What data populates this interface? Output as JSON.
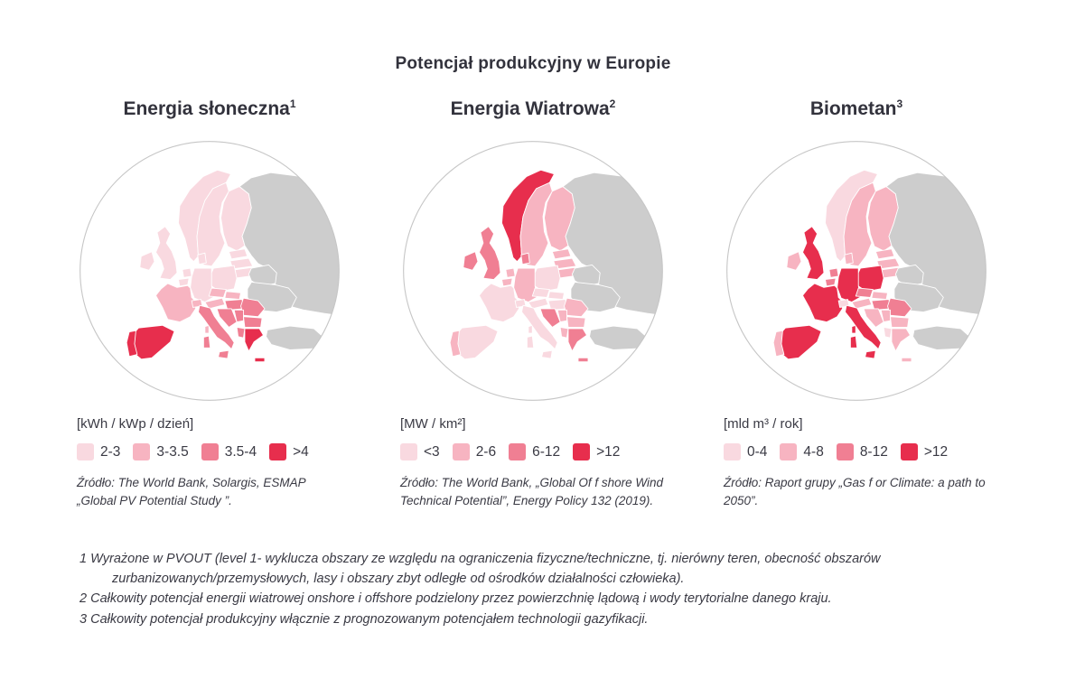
{
  "page_title": "Potencjał produkcyjny w Europie",
  "colors": {
    "levels": [
      "#F9D9E0",
      "#F7B4C1",
      "#F07F93",
      "#E72E4D"
    ],
    "no_data": "#CDCDCD",
    "sea": "#FFFFFF",
    "circle_border": "#C6C6C6",
    "country_border": "#FFFFFF",
    "text": "#3A3A44"
  },
  "chart_data": [
    {
      "type": "choropleth",
      "title": "Energia słoneczna",
      "title_sup": "1",
      "unit": "[kWh / kWp / dzień]",
      "legend": [
        "2-3",
        "3-3.5",
        "3.5-4",
        ">4"
      ],
      "legend_colors": [
        "#F9D9E0",
        "#F7B4C1",
        "#F07F93",
        "#E72E4D"
      ],
      "source": "Źródło: The World Bank, Solargis, ESMAP „Global PV Potential Study ”.",
      "country_levels": {
        "norway": 1,
        "sweden": 1,
        "finland": 1,
        "denmark": 1,
        "estonia": 1,
        "latvia": 1,
        "lithuania": 1,
        "uk": 1,
        "ireland": 1,
        "netherlands": 1,
        "belgium": 1,
        "germany": 1,
        "poland": 1,
        "czechia": 2,
        "slovakia": 2,
        "austria": 2,
        "switzerland": 2,
        "france": 2,
        "hungary": 3,
        "romania": 3,
        "bulgaria": 3,
        "serbia": 3,
        "croatia": 3,
        "albania": 3,
        "italy": 3,
        "greece": 4,
        "spain": 4,
        "portugal": 4,
        "russia": 0,
        "belarus": 0,
        "ukraine": 0,
        "turkey": 0
      }
    },
    {
      "type": "choropleth",
      "title": "Energia Wiatrowa",
      "title_sup": "2",
      "unit": "[MW / km²]",
      "legend": [
        "<3",
        "2-6",
        "6-12",
        ">12"
      ],
      "legend_colors": [
        "#F9D9E0",
        "#F7B4C1",
        "#F07F93",
        "#E72E4D"
      ],
      "source": "Źródło: The World Bank, „Global Of f shore Wind Technical Potential”, Energy Policy 132 (2019).",
      "country_levels": {
        "norway": 4,
        "sweden": 2,
        "finland": 2,
        "denmark": 3,
        "estonia": 2,
        "latvia": 2,
        "lithuania": 2,
        "uk": 3,
        "ireland": 3,
        "netherlands": 2,
        "belgium": 2,
        "germany": 2,
        "poland": 1,
        "czechia": 1,
        "slovakia": 1,
        "austria": 1,
        "switzerland": 1,
        "france": 1,
        "hungary": 1,
        "romania": 2,
        "bulgaria": 2,
        "serbia": 2,
        "croatia": 3,
        "albania": 2,
        "italy": 1,
        "greece": 3,
        "spain": 1,
        "portugal": 2,
        "russia": 0,
        "belarus": 0,
        "ukraine": 0,
        "turkey": 0
      }
    },
    {
      "type": "choropleth",
      "title": "Biometan",
      "title_sup": "3",
      "unit": "[mld m³ / rok]",
      "legend": [
        "0-4",
        "4-8",
        "8-12",
        ">12"
      ],
      "legend_colors": [
        "#F9D9E0",
        "#F7B4C1",
        "#F07F93",
        "#E72E4D"
      ],
      "source": "Źródło: Raport grupy „Gas f or Climate: a path to 2050”.",
      "country_levels": {
        "norway": 1,
        "sweden": 2,
        "finland": 2,
        "denmark": 2,
        "estonia": 2,
        "latvia": 2,
        "lithuania": 2,
        "uk": 4,
        "ireland": 2,
        "netherlands": 3,
        "belgium": 3,
        "germany": 4,
        "poland": 4,
        "czechia": 3,
        "slovakia": 2,
        "austria": 2,
        "switzerland": 1,
        "france": 4,
        "hungary": 3,
        "romania": 3,
        "bulgaria": 2,
        "serbia": 2,
        "croatia": 2,
        "albania": 1,
        "italy": 4,
        "greece": 2,
        "spain": 4,
        "portugal": 2,
        "russia": 0,
        "belarus": 0,
        "ukraine": 0,
        "turkey": 0
      }
    }
  ],
  "footnotes": [
    "1 Wyrażone w PVOUT (level 1- wyklucza obszary ze względu na ograniczenia fizyczne/techniczne, tj. nierówny teren, obecność obszarów zurbanizowanych/przemysłowych, lasy i obszary zbyt odległe od ośrodków działalności człowieka).",
    "2 Całkowity potencjał energii wiatrowej onshore i offshore podzielony przez powierzchnię lądową i wody terytorialne danego kraju.",
    "3 Całkowity potencjał produkcyjny włącznie z prognozowanym potencjałem technologii gazyfikacji."
  ]
}
